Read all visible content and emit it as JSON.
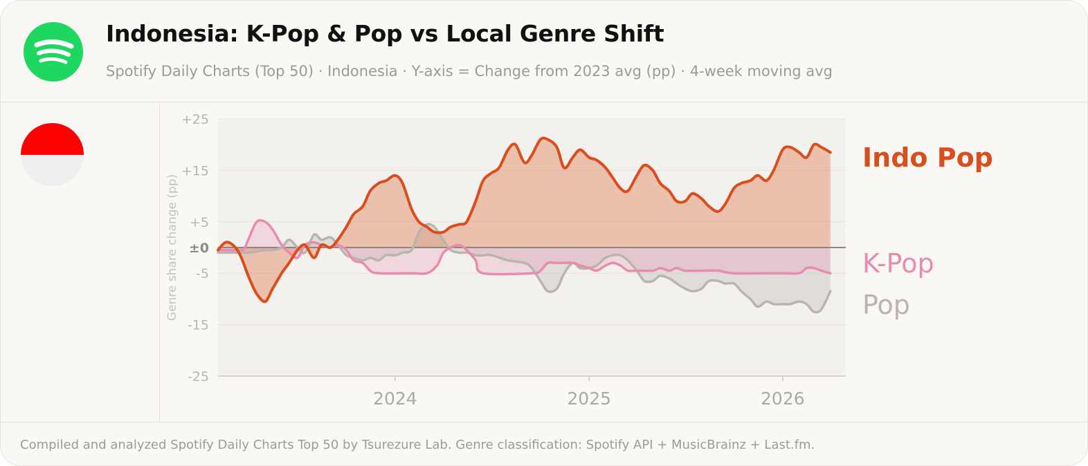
{
  "header": {
    "title": "Indonesia: K-Pop & Pop vs Local Genre Shift",
    "subtitle": "Spotify Daily Charts (Top 50) · Indonesia · Y-axis = Change from 2023 avg (pp) · 4-week moving avg",
    "logo_icon": "spotify-logo-icon",
    "flag_icon": "indonesia-flag-icon"
  },
  "footer": {
    "note": "Compiled and analyzed Spotify Daily Charts Top 50 by Tsurezure Lab. Genre classification: Spotify API + MusicBrainz + Last.fm."
  },
  "colors": {
    "indo_pop": "#d94e1c",
    "kpop": "#e98bb0",
    "pop": "#b8b5ae",
    "spotify_green": "#1ed760"
  },
  "chart_data": {
    "type": "area",
    "title": "Indonesia: K-Pop & Pop vs Local Genre Shift",
    "ylabel": "Genre share change (pp)",
    "xlabel": "",
    "ylim": [
      -25,
      25
    ],
    "xlim": [
      "2023-02-01",
      "2026-04-30"
    ],
    "y_ticks": [
      {
        "value": 25,
        "label": "+25"
      },
      {
        "value": 15,
        "label": "+15"
      },
      {
        "value": 5,
        "label": "+5"
      },
      {
        "value": 0,
        "label": "±0"
      },
      {
        "value": -5,
        "label": "-5"
      },
      {
        "value": -15,
        "label": "-15"
      },
      {
        "value": -25,
        "label": "-25"
      }
    ],
    "x_ticks": [
      {
        "value": "2024-01-01",
        "label": "2024"
      },
      {
        "value": "2025-01-01",
        "label": "2025"
      },
      {
        "value": "2026-01-01",
        "label": "2026"
      }
    ],
    "grid": true,
    "baseline": 0,
    "legend": "right-inline",
    "series": [
      {
        "name": "Indo Pop",
        "points": [
          [
            "2023-02-01",
            -0.5
          ],
          [
            "2023-02-15",
            1.0
          ],
          [
            "2023-03-01",
            0.5
          ],
          [
            "2023-03-15",
            -1.5
          ],
          [
            "2023-04-01",
            -6.0
          ],
          [
            "2023-04-15",
            -9.0
          ],
          [
            "2023-05-01",
            -10.5
          ],
          [
            "2023-05-15",
            -8.0
          ],
          [
            "2023-06-01",
            -5.0
          ],
          [
            "2023-06-15",
            -3.0
          ],
          [
            "2023-07-01",
            -0.5
          ],
          [
            "2023-07-15",
            0.5
          ],
          [
            "2023-08-01",
            -2.0
          ],
          [
            "2023-08-15",
            0.5
          ],
          [
            "2023-09-01",
            0.0
          ],
          [
            "2023-09-15",
            1.5
          ],
          [
            "2023-10-01",
            4.0
          ],
          [
            "2023-10-15",
            6.5
          ],
          [
            "2023-11-01",
            8.0
          ],
          [
            "2023-11-15",
            11.0
          ],
          [
            "2023-12-01",
            12.5
          ],
          [
            "2023-12-15",
            13.0
          ],
          [
            "2024-01-01",
            14.0
          ],
          [
            "2024-01-15",
            12.5
          ],
          [
            "2024-02-01",
            7.5
          ],
          [
            "2024-02-15",
            5.0
          ],
          [
            "2024-03-01",
            4.0
          ],
          [
            "2024-03-15",
            3.0
          ],
          [
            "2024-04-01",
            3.0
          ],
          [
            "2024-04-15",
            4.0
          ],
          [
            "2024-05-01",
            4.5
          ],
          [
            "2024-05-15",
            5.0
          ],
          [
            "2024-06-01",
            9.0
          ],
          [
            "2024-06-15",
            13.0
          ],
          [
            "2024-07-01",
            14.5
          ],
          [
            "2024-07-15",
            15.5
          ],
          [
            "2024-08-01",
            19.0
          ],
          [
            "2024-08-15",
            20.0
          ],
          [
            "2024-09-01",
            16.5
          ],
          [
            "2024-09-15",
            18.0
          ],
          [
            "2024-10-01",
            21.0
          ],
          [
            "2024-10-15",
            21.0
          ],
          [
            "2024-11-01",
            19.5
          ],
          [
            "2024-11-15",
            15.5
          ],
          [
            "2024-12-01",
            17.5
          ],
          [
            "2024-12-15",
            19.0
          ],
          [
            "2025-01-01",
            17.5
          ],
          [
            "2025-01-15",
            17.0
          ],
          [
            "2025-02-01",
            15.5
          ],
          [
            "2025-02-15",
            13.5
          ],
          [
            "2025-03-01",
            11.5
          ],
          [
            "2025-03-15",
            11.0
          ],
          [
            "2025-04-01",
            14.0
          ],
          [
            "2025-04-15",
            16.0
          ],
          [
            "2025-05-01",
            15.0
          ],
          [
            "2025-05-15",
            12.5
          ],
          [
            "2025-06-01",
            11.0
          ],
          [
            "2025-06-15",
            9.0
          ],
          [
            "2025-07-01",
            9.0
          ],
          [
            "2025-07-15",
            10.5
          ],
          [
            "2025-08-01",
            9.5
          ],
          [
            "2025-08-15",
            8.0
          ],
          [
            "2025-09-01",
            7.0
          ],
          [
            "2025-09-15",
            8.5
          ],
          [
            "2025-10-01",
            11.5
          ],
          [
            "2025-10-15",
            12.5
          ],
          [
            "2025-11-01",
            13.0
          ],
          [
            "2025-11-15",
            14.0
          ],
          [
            "2025-12-01",
            13.0
          ],
          [
            "2025-12-15",
            15.0
          ],
          [
            "2026-01-01",
            19.0
          ],
          [
            "2026-01-15",
            19.5
          ],
          [
            "2026-02-01",
            18.5
          ],
          [
            "2026-02-15",
            17.5
          ],
          [
            "2026-03-01",
            20.0
          ],
          [
            "2026-03-15",
            19.5
          ],
          [
            "2026-04-01",
            18.5
          ]
        ]
      },
      {
        "name": "K-Pop",
        "points": [
          [
            "2023-02-01",
            -0.5
          ],
          [
            "2023-03-01",
            -0.5
          ],
          [
            "2023-03-20",
            -0.5
          ],
          [
            "2023-04-01",
            2.0
          ],
          [
            "2023-04-15",
            5.0
          ],
          [
            "2023-05-01",
            5.0
          ],
          [
            "2023-05-15",
            3.5
          ],
          [
            "2023-06-01",
            0.5
          ],
          [
            "2023-06-15",
            -1.0
          ],
          [
            "2023-07-01",
            -2.0
          ],
          [
            "2023-07-15",
            0.5
          ],
          [
            "2023-08-01",
            1.0
          ],
          [
            "2023-08-15",
            0.5
          ],
          [
            "2023-09-01",
            0.0
          ],
          [
            "2023-09-15",
            0.5
          ],
          [
            "2023-10-01",
            -0.5
          ],
          [
            "2023-10-15",
            -2.5
          ],
          [
            "2023-11-01",
            -3.0
          ],
          [
            "2023-11-15",
            -4.5
          ],
          [
            "2023-12-01",
            -5.0
          ],
          [
            "2024-02-01",
            -5.0
          ],
          [
            "2024-03-01",
            -5.0
          ],
          [
            "2024-03-20",
            -3.5
          ],
          [
            "2024-04-01",
            -1.0
          ],
          [
            "2024-04-15",
            0.0
          ],
          [
            "2024-05-01",
            0.5
          ],
          [
            "2024-05-15",
            -0.5
          ],
          [
            "2024-06-01",
            -2.5
          ],
          [
            "2024-06-15",
            -5.0
          ],
          [
            "2024-09-15",
            -5.0
          ],
          [
            "2024-10-01",
            -4.5
          ],
          [
            "2024-10-15",
            -3.0
          ],
          [
            "2024-11-01",
            -3.0
          ],
          [
            "2024-12-01",
            -3.0
          ],
          [
            "2024-12-15",
            -3.5
          ],
          [
            "2025-01-01",
            -4.0
          ],
          [
            "2025-01-15",
            -4.5
          ],
          [
            "2025-02-01",
            -3.5
          ],
          [
            "2025-02-15",
            -3.0
          ],
          [
            "2025-03-01",
            -3.5
          ],
          [
            "2025-03-15",
            -4.5
          ],
          [
            "2025-04-01",
            -4.5
          ],
          [
            "2025-05-01",
            -4.5
          ],
          [
            "2025-05-15",
            -4.0
          ],
          [
            "2025-06-01",
            -4.5
          ],
          [
            "2025-06-15",
            -4.0
          ],
          [
            "2025-07-01",
            -4.5
          ],
          [
            "2025-08-01",
            -4.5
          ],
          [
            "2025-09-01",
            -4.5
          ],
          [
            "2025-10-01",
            -5.0
          ],
          [
            "2026-01-01",
            -5.0
          ],
          [
            "2026-02-01",
            -5.0
          ],
          [
            "2026-02-15",
            -4.0
          ],
          [
            "2026-03-01",
            -4.0
          ],
          [
            "2026-03-15",
            -4.5
          ],
          [
            "2026-04-01",
            -5.0
          ]
        ]
      },
      {
        "name": "Pop",
        "points": [
          [
            "2023-02-01",
            -1.0
          ],
          [
            "2023-03-01",
            -1.0
          ],
          [
            "2023-04-01",
            -1.0
          ],
          [
            "2023-05-01",
            -0.5
          ],
          [
            "2023-05-15",
            -0.5
          ],
          [
            "2023-06-01",
            0.0
          ],
          [
            "2023-06-15",
            1.5
          ],
          [
            "2023-07-01",
            0.0
          ],
          [
            "2023-07-15",
            -1.0
          ],
          [
            "2023-08-01",
            2.5
          ],
          [
            "2023-08-15",
            1.5
          ],
          [
            "2023-09-01",
            2.0
          ],
          [
            "2023-09-15",
            0.5
          ],
          [
            "2023-10-01",
            -1.5
          ],
          [
            "2023-10-15",
            -2.0
          ],
          [
            "2023-11-01",
            -2.5
          ],
          [
            "2023-11-15",
            -2.0
          ],
          [
            "2023-12-01",
            -2.5
          ],
          [
            "2023-12-15",
            -1.5
          ],
          [
            "2024-01-01",
            -1.5
          ],
          [
            "2024-01-15",
            -1.0
          ],
          [
            "2024-02-01",
            -0.5
          ],
          [
            "2024-02-15",
            3.0
          ],
          [
            "2024-03-01",
            4.5
          ],
          [
            "2024-03-15",
            4.0
          ],
          [
            "2024-04-01",
            1.5
          ],
          [
            "2024-04-15",
            -0.5
          ],
          [
            "2024-05-01",
            -1.0
          ],
          [
            "2024-05-15",
            -1.0
          ],
          [
            "2024-06-01",
            -1.5
          ],
          [
            "2024-06-15",
            -1.5
          ],
          [
            "2024-07-01",
            -1.5
          ],
          [
            "2024-08-01",
            -2.5
          ],
          [
            "2024-09-01",
            -3.0
          ],
          [
            "2024-09-15",
            -4.0
          ],
          [
            "2024-10-01",
            -6.5
          ],
          [
            "2024-10-15",
            -8.5
          ],
          [
            "2024-11-01",
            -8.0
          ],
          [
            "2024-11-15",
            -5.0
          ],
          [
            "2024-12-01",
            -3.0
          ],
          [
            "2024-12-15",
            -4.0
          ],
          [
            "2025-01-01",
            -4.0
          ],
          [
            "2025-01-15",
            -3.5
          ],
          [
            "2025-02-01",
            -2.0
          ],
          [
            "2025-02-15",
            -1.5
          ],
          [
            "2025-03-01",
            -1.5
          ],
          [
            "2025-03-15",
            -2.5
          ],
          [
            "2025-04-01",
            -4.5
          ],
          [
            "2025-04-15",
            -6.5
          ],
          [
            "2025-05-01",
            -6.5
          ],
          [
            "2025-05-15",
            -5.5
          ],
          [
            "2025-06-01",
            -6.0
          ],
          [
            "2025-06-15",
            -7.0
          ],
          [
            "2025-07-01",
            -8.0
          ],
          [
            "2025-07-15",
            -8.5
          ],
          [
            "2025-08-01",
            -8.0
          ],
          [
            "2025-08-15",
            -6.5
          ],
          [
            "2025-09-01",
            -6.5
          ],
          [
            "2025-09-15",
            -7.0
          ],
          [
            "2025-10-01",
            -7.0
          ],
          [
            "2025-10-15",
            -8.5
          ],
          [
            "2025-11-01",
            -10.0
          ],
          [
            "2025-11-15",
            -11.5
          ],
          [
            "2025-12-01",
            -10.5
          ],
          [
            "2025-12-15",
            -11.0
          ],
          [
            "2026-01-01",
            -11.0
          ],
          [
            "2026-01-15",
            -11.0
          ],
          [
            "2026-02-01",
            -10.5
          ],
          [
            "2026-02-15",
            -11.0
          ],
          [
            "2026-03-01",
            -12.5
          ],
          [
            "2026-03-15",
            -12.0
          ],
          [
            "2026-04-01",
            -8.5
          ]
        ]
      }
    ]
  }
}
